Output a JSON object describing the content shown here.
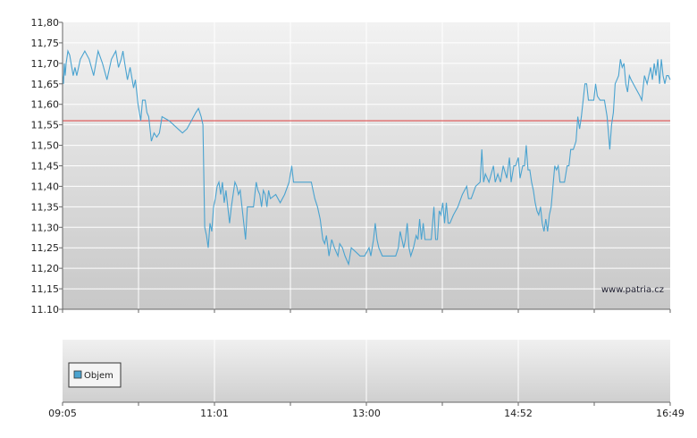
{
  "chart_data": {
    "type": "line",
    "price_panel": {
      "y_ticks": [
        "11,80",
        "11,75",
        "11,70",
        "11,65",
        "11,60",
        "11,55",
        "11,50",
        "11,45",
        "11,40",
        "11,35",
        "11,30",
        "11,25",
        "11,20",
        "11,15",
        "11.10"
      ],
      "ylim": [
        11.1,
        11.8
      ],
      "reference_line": {
        "value": 11.56,
        "color": "#e05050"
      },
      "line_color": "#4aa3d0",
      "grid": true,
      "series": [
        {
          "values": [
            [
              0,
              11.67
            ],
            [
              0.01,
              11.65
            ],
            [
              0.02,
              11.7
            ],
            [
              0.03,
              11.67
            ],
            [
              0.04,
              11.7
            ],
            [
              0.06,
              11.73
            ],
            [
              0.08,
              11.72
            ],
            [
              0.12,
              11.67
            ],
            [
              0.14,
              11.69
            ],
            [
              0.16,
              11.67
            ],
            [
              0.2,
              11.71
            ],
            [
              0.25,
              11.73
            ],
            [
              0.3,
              11.71
            ],
            [
              0.35,
              11.67
            ],
            [
              0.4,
              11.73
            ],
            [
              0.45,
              11.7
            ],
            [
              0.5,
              11.66
            ],
            [
              0.55,
              11.71
            ],
            [
              0.6,
              11.73
            ],
            [
              0.63,
              11.69
            ],
            [
              0.66,
              11.71
            ],
            [
              0.68,
              11.73
            ],
            [
              0.7,
              11.7
            ],
            [
              0.73,
              11.66
            ],
            [
              0.76,
              11.69
            ],
            [
              0.8,
              11.64
            ],
            [
              0.82,
              11.66
            ],
            [
              0.85,
              11.6
            ],
            [
              0.88,
              11.56
            ],
            [
              0.9,
              11.61
            ],
            [
              0.93,
              11.61
            ],
            [
              0.95,
              11.58
            ],
            [
              0.97,
              11.57
            ],
            [
              1.0,
              11.51
            ],
            [
              1.03,
              11.53
            ],
            [
              1.06,
              11.52
            ],
            [
              1.09,
              11.53
            ],
            [
              1.12,
              11.57
            ],
            [
              1.2,
              11.56
            ],
            [
              1.3,
              11.54
            ],
            [
              1.35,
              11.53
            ],
            [
              1.4,
              11.54
            ],
            [
              1.45,
              11.56
            ],
            [
              1.5,
              11.58
            ],
            [
              1.53,
              11.59
            ],
            [
              1.56,
              11.57
            ],
            [
              1.58,
              11.55
            ],
            [
              1.6,
              11.3
            ],
            [
              1.62,
              11.28
            ],
            [
              1.64,
              11.25
            ],
            [
              1.66,
              11.31
            ],
            [
              1.68,
              11.29
            ],
            [
              1.7,
              11.35
            ],
            [
              1.72,
              11.37
            ],
            [
              1.74,
              11.4
            ],
            [
              1.76,
              11.41
            ],
            [
              1.78,
              11.38
            ],
            [
              1.8,
              11.41
            ],
            [
              1.82,
              11.36
            ],
            [
              1.84,
              11.39
            ],
            [
              1.86,
              11.35
            ],
            [
              1.88,
              11.31
            ],
            [
              1.9,
              11.35
            ],
            [
              1.92,
              11.38
            ],
            [
              1.94,
              11.41
            ],
            [
              1.96,
              11.4
            ],
            [
              1.98,
              11.38
            ],
            [
              2.0,
              11.39
            ],
            [
              2.02,
              11.35
            ],
            [
              2.04,
              11.31
            ],
            [
              2.06,
              11.27
            ],
            [
              2.08,
              11.35
            ],
            [
              2.1,
              11.35
            ],
            [
              2.15,
              11.35
            ],
            [
              2.18,
              11.41
            ],
            [
              2.2,
              11.39
            ],
            [
              2.22,
              11.38
            ],
            [
              2.24,
              11.35
            ],
            [
              2.26,
              11.39
            ],
            [
              2.28,
              11.38
            ],
            [
              2.3,
              11.35
            ],
            [
              2.32,
              11.39
            ],
            [
              2.34,
              11.37
            ],
            [
              2.4,
              11.38
            ],
            [
              2.45,
              11.36
            ],
            [
              2.5,
              11.38
            ],
            [
              2.55,
              11.41
            ],
            [
              2.58,
              11.45
            ],
            [
              2.6,
              11.41
            ],
            [
              2.7,
              11.41
            ],
            [
              2.8,
              11.41
            ],
            [
              2.84,
              11.37
            ],
            [
              2.87,
              11.35
            ],
            [
              2.9,
              11.32
            ],
            [
              2.93,
              11.27
            ],
            [
              2.95,
              11.26
            ],
            [
              2.97,
              11.28
            ],
            [
              3.0,
              11.23
            ],
            [
              3.03,
              11.27
            ],
            [
              3.06,
              11.25
            ],
            [
              3.1,
              11.23
            ],
            [
              3.12,
              11.26
            ],
            [
              3.15,
              11.25
            ],
            [
              3.18,
              11.23
            ],
            [
              3.22,
              11.21
            ],
            [
              3.25,
              11.25
            ],
            [
              3.3,
              11.24
            ],
            [
              3.35,
              11.23
            ],
            [
              3.4,
              11.23
            ],
            [
              3.45,
              11.25
            ],
            [
              3.47,
              11.23
            ],
            [
              3.5,
              11.27
            ],
            [
              3.52,
              11.31
            ],
            [
              3.54,
              11.27
            ],
            [
              3.56,
              11.25
            ],
            [
              3.6,
              11.23
            ],
            [
              3.65,
              11.23
            ],
            [
              3.7,
              11.23
            ],
            [
              3.75,
              11.23
            ],
            [
              3.78,
              11.25
            ],
            [
              3.8,
              11.29
            ],
            [
              3.82,
              11.27
            ],
            [
              3.84,
              11.25
            ],
            [
              3.86,
              11.27
            ],
            [
              3.88,
              11.31
            ],
            [
              3.9,
              11.25
            ],
            [
              3.92,
              11.23
            ],
            [
              3.95,
              11.25
            ],
            [
              3.98,
              11.28
            ],
            [
              4.0,
              11.27
            ],
            [
              4.02,
              11.32
            ],
            [
              4.04,
              11.27
            ],
            [
              4.06,
              11.31
            ],
            [
              4.08,
              11.27
            ],
            [
              4.1,
              11.27
            ],
            [
              4.15,
              11.27
            ],
            [
              4.18,
              11.35
            ],
            [
              4.2,
              11.27
            ],
            [
              4.22,
              11.27
            ],
            [
              4.24,
              11.34
            ],
            [
              4.26,
              11.33
            ],
            [
              4.28,
              11.36
            ],
            [
              4.3,
              11.31
            ],
            [
              4.32,
              11.36
            ],
            [
              4.34,
              11.31
            ],
            [
              4.36,
              11.31
            ],
            [
              4.4,
              11.33
            ],
            [
              4.45,
              11.35
            ],
            [
              4.5,
              11.38
            ],
            [
              4.55,
              11.4
            ],
            [
              4.57,
              11.37
            ],
            [
              4.6,
              11.37
            ],
            [
              4.65,
              11.4
            ],
            [
              4.7,
              11.41
            ],
            [
              4.72,
              11.49
            ],
            [
              4.74,
              11.41
            ],
            [
              4.76,
              11.43
            ],
            [
              4.8,
              11.41
            ],
            [
              4.85,
              11.45
            ],
            [
              4.87,
              11.41
            ],
            [
              4.9,
              11.43
            ],
            [
              4.93,
              11.41
            ],
            [
              4.96,
              11.45
            ],
            [
              5.0,
              11.42
            ],
            [
              5.03,
              11.47
            ],
            [
              5.05,
              11.41
            ],
            [
              5.08,
              11.45
            ],
            [
              5.1,
              11.45
            ],
            [
              5.13,
              11.47
            ],
            [
              5.15,
              11.42
            ],
            [
              5.18,
              11.45
            ],
            [
              5.2,
              11.45
            ],
            [
              5.22,
              11.5
            ],
            [
              5.24,
              11.44
            ],
            [
              5.26,
              11.44
            ],
            [
              5.28,
              11.41
            ],
            [
              5.3,
              11.39
            ],
            [
              5.32,
              11.36
            ],
            [
              5.34,
              11.34
            ],
            [
              5.36,
              11.33
            ],
            [
              5.38,
              11.35
            ],
            [
              5.4,
              11.31
            ],
            [
              5.42,
              11.29
            ],
            [
              5.44,
              11.32
            ],
            [
              5.46,
              11.29
            ],
            [
              5.48,
              11.33
            ],
            [
              5.5,
              11.35
            ],
            [
              5.52,
              11.4
            ],
            [
              5.54,
              11.45
            ],
            [
              5.56,
              11.44
            ],
            [
              5.58,
              11.45
            ],
            [
              5.6,
              11.41
            ],
            [
              5.62,
              11.41
            ],
            [
              5.65,
              11.41
            ],
            [
              5.68,
              11.45
            ],
            [
              5.7,
              11.45
            ],
            [
              5.72,
              11.49
            ],
            [
              5.75,
              11.49
            ],
            [
              5.78,
              11.51
            ],
            [
              5.8,
              11.57
            ],
            [
              5.82,
              11.54
            ],
            [
              5.84,
              11.57
            ],
            [
              5.86,
              11.61
            ],
            [
              5.88,
              11.65
            ],
            [
              5.9,
              11.65
            ],
            [
              5.92,
              11.61
            ],
            [
              5.95,
              11.61
            ],
            [
              5.98,
              11.61
            ],
            [
              6.0,
              11.65
            ],
            [
              6.02,
              11.62
            ],
            [
              6.05,
              11.61
            ],
            [
              6.1,
              11.61
            ],
            [
              6.13,
              11.57
            ],
            [
              6.16,
              11.49
            ],
            [
              6.18,
              11.55
            ],
            [
              6.2,
              11.58
            ],
            [
              6.22,
              11.65
            ],
            [
              6.24,
              11.66
            ],
            [
              6.26,
              11.67
            ],
            [
              6.28,
              11.71
            ],
            [
              6.3,
              11.69
            ],
            [
              6.32,
              11.7
            ],
            [
              6.34,
              11.65
            ],
            [
              6.36,
              11.63
            ],
            [
              6.38,
              11.67
            ],
            [
              6.4,
              11.66
            ],
            [
              6.45,
              11.64
            ],
            [
              6.5,
              11.62
            ],
            [
              6.52,
              11.61
            ],
            [
              6.55,
              11.67
            ],
            [
              6.58,
              11.65
            ],
            [
              6.6,
              11.67
            ],
            [
              6.62,
              11.69
            ],
            [
              6.64,
              11.66
            ],
            [
              6.66,
              11.7
            ],
            [
              6.68,
              11.67
            ],
            [
              6.7,
              11.71
            ],
            [
              6.72,
              11.65
            ],
            [
              6.74,
              11.71
            ],
            [
              6.76,
              11.67
            ],
            [
              6.78,
              11.65
            ],
            [
              6.8,
              11.67
            ],
            [
              6.82,
              11.67
            ],
            [
              6.84,
              11.66
            ]
          ]
        }
      ]
    },
    "volume_panel": {
      "legend": "Objem",
      "legend_color": "#4aa3d0"
    },
    "x_ticks": [
      "09:05",
      "11:01",
      "13:00",
      "14:52",
      "16:49"
    ],
    "watermark": "www.patria.cz"
  }
}
